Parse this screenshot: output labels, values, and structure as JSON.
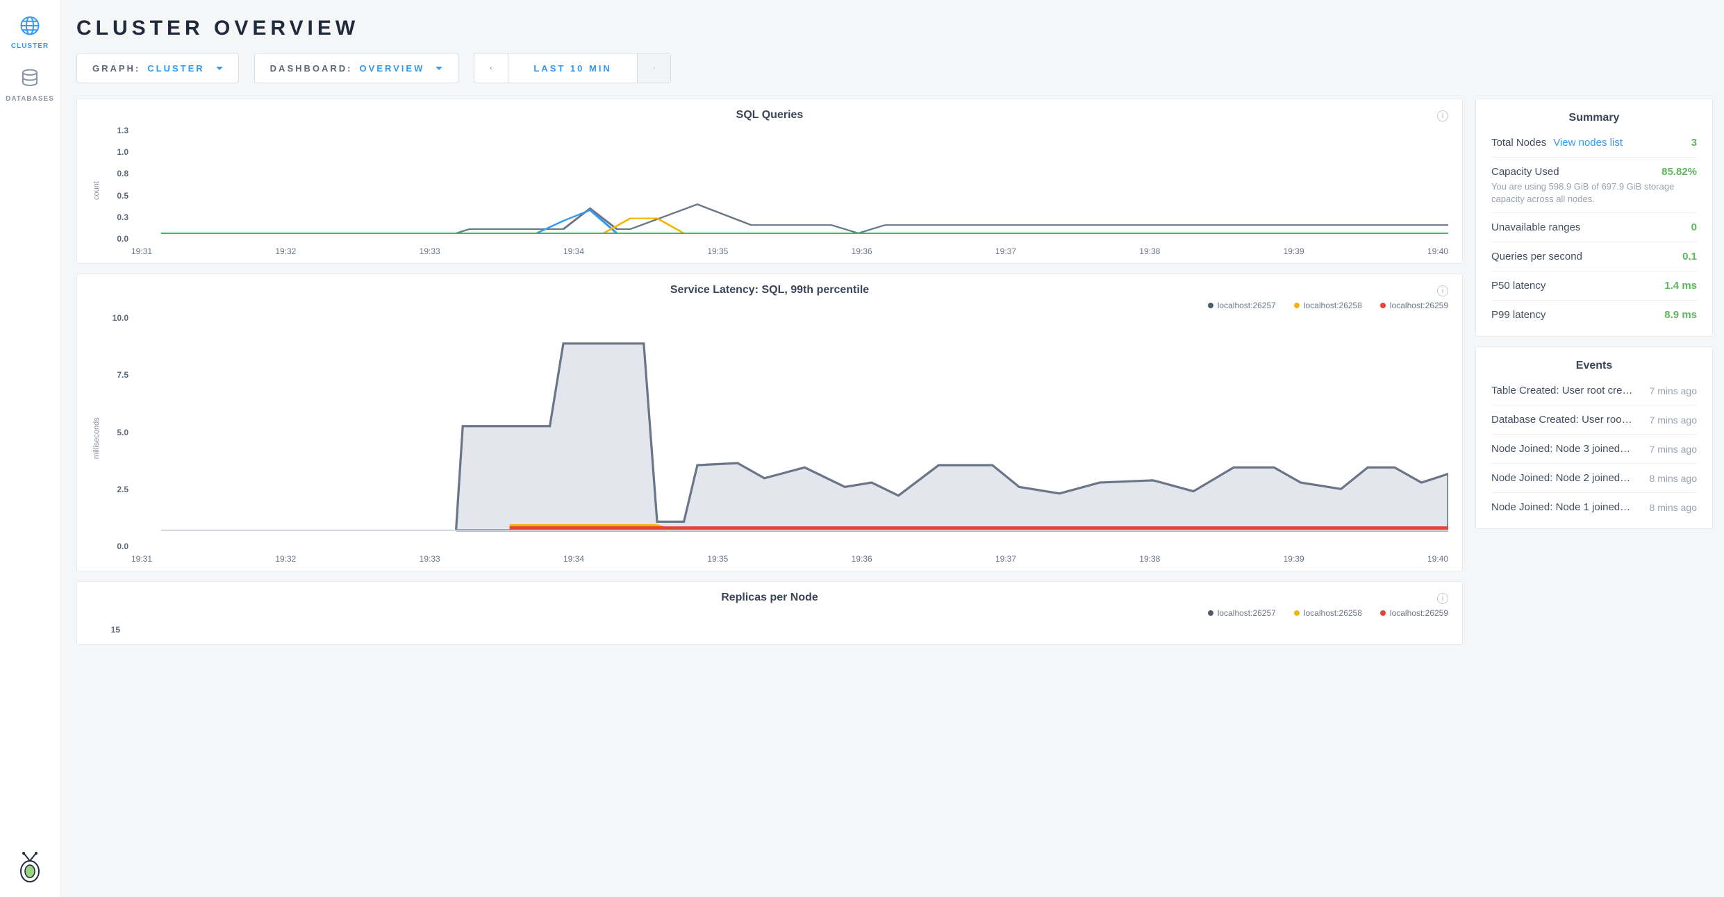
{
  "sidebar": {
    "items": [
      {
        "label": "CLUSTER",
        "icon": "globe",
        "active": true
      },
      {
        "label": "DATABASES",
        "icon": "db",
        "active": false
      }
    ]
  },
  "page": {
    "title": "CLUSTER OVERVIEW"
  },
  "controls": {
    "graph_label": "GRAPH:",
    "graph_value": "CLUSTER",
    "dashboard_label": "DASHBOARD:",
    "dashboard_value": "OVERVIEW",
    "range_value": "LAST 10 MIN"
  },
  "colors": {
    "accent": "#3399f2",
    "node1": "#4f5a6e",
    "node2": "#f4b400",
    "node3": "#ea4335",
    "green_line": "#47b86b",
    "area_fill": "#d9dde5",
    "area_stroke": "#6b7588"
  },
  "xticks": [
    "19:31",
    "19:32",
    "19:33",
    "19:34",
    "19:35",
    "19:36",
    "19:37",
    "19:38",
    "19:39",
    "19:40"
  ],
  "chart_sql": {
    "type": "line",
    "title": "SQL Queries",
    "ylabel": "count",
    "ylim": [
      0,
      1.3
    ],
    "yticks": [
      "1.3",
      "1.0",
      "0.8",
      "0.5",
      "0.3",
      "0.0"
    ],
    "series": [
      {
        "name": "count",
        "color": "#6b7588",
        "points": [
          [
            0,
            0
          ],
          [
            2.2,
            0
          ],
          [
            2.3,
            0.05
          ],
          [
            3.0,
            0.05
          ],
          [
            3.2,
            0.3
          ],
          [
            3.4,
            0.05
          ],
          [
            3.5,
            0.05
          ],
          [
            4.0,
            0.35
          ],
          [
            4.4,
            0.1
          ],
          [
            4.7,
            0.1
          ],
          [
            5.0,
            0.1
          ],
          [
            5.2,
            0.0
          ],
          [
            5.4,
            0.1
          ],
          [
            9.6,
            0.1
          ]
        ]
      },
      {
        "name": "blue",
        "color": "#3399f2",
        "points": [
          [
            2.8,
            0
          ],
          [
            3.0,
            0.15
          ],
          [
            3.2,
            0.28
          ],
          [
            3.4,
            0.0
          ],
          [
            3.45,
            0.0
          ]
        ]
      },
      {
        "name": "yellow",
        "color": "#f4b400",
        "points": [
          [
            3.3,
            0
          ],
          [
            3.5,
            0.18
          ],
          [
            3.7,
            0.18
          ],
          [
            3.9,
            0.0
          ]
        ]
      },
      {
        "name": "green",
        "color": "#47b86b",
        "points": [
          [
            0,
            0
          ],
          [
            9.6,
            0
          ]
        ]
      }
    ]
  },
  "chart_latency": {
    "type": "area",
    "title": "Service Latency: SQL, 99th percentile",
    "ylabel": "milliseconds",
    "ylim": [
      0,
      10
    ],
    "yticks": [
      "10.0",
      "7.5",
      "5.0",
      "2.5",
      "0.0"
    ],
    "legend": [
      {
        "label": "localhost:26257",
        "color": "#4f5a6e"
      },
      {
        "label": "localhost:26258",
        "color": "#f4b400"
      },
      {
        "label": "localhost:26259",
        "color": "#ea4335"
      }
    ],
    "series_main": {
      "fill": "#e3e6ec",
      "stroke": "#6b7588",
      "points": [
        [
          2.2,
          0
        ],
        [
          2.25,
          4.8
        ],
        [
          2.9,
          4.8
        ],
        [
          3.0,
          8.6
        ],
        [
          3.6,
          8.6
        ],
        [
          3.7,
          0.4
        ],
        [
          3.9,
          0.4
        ],
        [
          4.0,
          3.0
        ],
        [
          4.3,
          3.1
        ],
        [
          4.5,
          2.4
        ],
        [
          4.8,
          2.9
        ],
        [
          5.1,
          2.0
        ],
        [
          5.3,
          2.2
        ],
        [
          5.5,
          1.6
        ],
        [
          5.8,
          3.0
        ],
        [
          6.2,
          3.0
        ],
        [
          6.4,
          2.0
        ],
        [
          6.7,
          1.7
        ],
        [
          7.0,
          2.2
        ],
        [
          7.4,
          2.3
        ],
        [
          7.7,
          1.8
        ],
        [
          8.0,
          2.9
        ],
        [
          8.3,
          2.9
        ],
        [
          8.5,
          2.2
        ],
        [
          8.8,
          1.9
        ],
        [
          9.0,
          2.9
        ],
        [
          9.2,
          2.9
        ],
        [
          9.4,
          2.2
        ],
        [
          9.6,
          2.6
        ]
      ]
    },
    "series_yellow": {
      "color": "#f4b400",
      "points": [
        [
          2.6,
          0.2
        ],
        [
          3.7,
          0.2
        ],
        [
          3.8,
          0
        ]
      ]
    },
    "series_red": {
      "color": "#ea4335",
      "points": [
        [
          2.6,
          0.1
        ],
        [
          9.6,
          0.1
        ]
      ]
    }
  },
  "chart_replicas": {
    "type": "line",
    "title": "Replicas per Node",
    "yticks_partial": [
      "15"
    ],
    "legend": [
      {
        "label": "localhost:26257",
        "color": "#4f5a6e"
      },
      {
        "label": "localhost:26258",
        "color": "#f4b400"
      },
      {
        "label": "localhost:26259",
        "color": "#ea4335"
      }
    ]
  },
  "summary": {
    "title": "Summary",
    "rows": [
      {
        "key": "Total Nodes",
        "link": "View nodes list",
        "val": "3",
        "cls": "green"
      },
      {
        "key": "Capacity Used",
        "val": "85.82%",
        "cls": "green",
        "sub": "You are using 598.9 GiB of 697.9 GiB storage capacity across all nodes."
      },
      {
        "key": "Unavailable ranges",
        "val": "0",
        "cls": "green"
      },
      {
        "key": "Queries per second",
        "val": "0.1",
        "cls": "green"
      },
      {
        "key": "P50 latency",
        "val": "1.4 ms",
        "cls": "green"
      },
      {
        "key": "P99 latency",
        "val": "8.9 ms",
        "cls": "green"
      }
    ]
  },
  "events": {
    "title": "Events",
    "items": [
      {
        "text": "Table Created: User root cre…",
        "time": "7 mins ago"
      },
      {
        "text": "Database Created: User roo…",
        "time": "7 mins ago"
      },
      {
        "text": "Node Joined: Node 3 joined…",
        "time": "7 mins ago"
      },
      {
        "text": "Node Joined: Node 2 joined…",
        "time": "8 mins ago"
      },
      {
        "text": "Node Joined: Node 1 joined…",
        "time": "8 mins ago"
      }
    ]
  }
}
